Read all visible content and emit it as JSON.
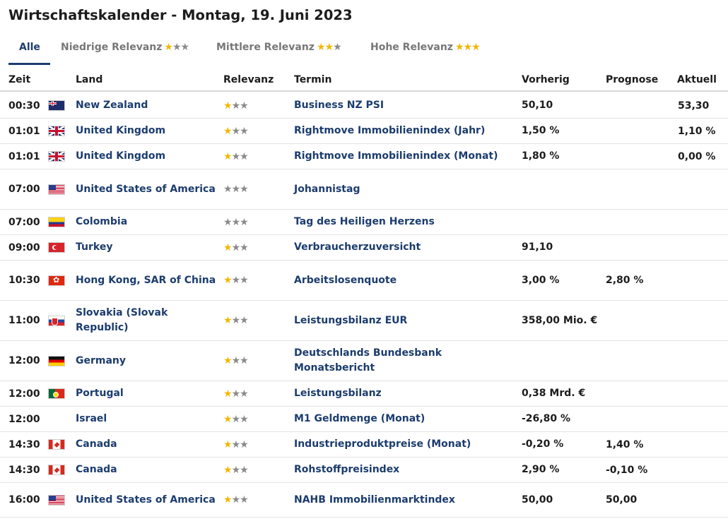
{
  "title": "Wirtschaftskalender - Montag, 19. Juni 2023",
  "tabs": [
    {
      "label": "Alle",
      "stars_on": 0,
      "stars_off": 0
    },
    {
      "label": "Niedrige Relevanz",
      "stars_on": 1,
      "stars_off": 2
    },
    {
      "label": "Mittlere Relevanz",
      "stars_on": 2,
      "stars_off": 1
    },
    {
      "label": "Hohe Relevanz",
      "stars_on": 3,
      "stars_off": 0
    }
  ],
  "columns": {
    "time": "Zeit",
    "country": "Land",
    "relevance": "Relevanz",
    "event": "Termin",
    "previous": "Vorherig",
    "forecast": "Prognose",
    "actual": "Aktuell"
  },
  "colors": {
    "accent": "#1c3c6e",
    "star_on": "#f2b705",
    "star_off": "#8a8a8a"
  },
  "rows": [
    {
      "time": "00:30",
      "flag": "flag-nz",
      "country": "New Zealand",
      "relevance": 1,
      "event": "Business NZ PSI",
      "previous": "50,10",
      "forecast": "",
      "actual": "53,30"
    },
    {
      "time": "01:01",
      "flag": "flag-uk",
      "country": "United Kingdom",
      "relevance": 1,
      "event": "Rightmove Immobilienindex (Jahr)",
      "previous": "1,50 %",
      "forecast": "",
      "actual": "1,10 %"
    },
    {
      "time": "01:01",
      "flag": "flag-uk",
      "country": "United Kingdom",
      "relevance": 1,
      "event": "Rightmove Immobilienindex (Monat)",
      "previous": "1,80 %",
      "forecast": "",
      "actual": "0,00 %"
    },
    {
      "time": "07:00",
      "flag": "flag-us",
      "country": "United States of America",
      "relevance": 0,
      "event": "Johannistag",
      "previous": "",
      "forecast": "",
      "actual": ""
    },
    {
      "time": "07:00",
      "flag": "flag-co",
      "country": "Colombia",
      "relevance": 0,
      "event": "Tag des Heiligen Herzens",
      "previous": "",
      "forecast": "",
      "actual": ""
    },
    {
      "time": "09:00",
      "flag": "flag-tr",
      "country": "Turkey",
      "relevance": 1,
      "event": "Verbraucherzuversicht",
      "previous": "91,10",
      "forecast": "",
      "actual": ""
    },
    {
      "time": "10:30",
      "flag": "flag-hk",
      "country": "Hong Kong, SAR of China",
      "relevance": 1,
      "event": "Arbeitslosenquote",
      "previous": "3,00 %",
      "forecast": "2,80 %",
      "actual": ""
    },
    {
      "time": "11:00",
      "flag": "flag-sk",
      "country": "Slovakia (Slovak Republic)",
      "relevance": 1,
      "event": "Leistungsbilanz EUR",
      "previous": "358,00 Mio. €",
      "forecast": "",
      "actual": ""
    },
    {
      "time": "12:00",
      "flag": "flag-de",
      "country": "Germany",
      "relevance": 1,
      "event": "Deutschlands Bundesbank Monatsbericht",
      "previous": "",
      "forecast": "",
      "actual": ""
    },
    {
      "time": "12:00",
      "flag": "flag-pt",
      "country": "Portugal",
      "relevance": 1,
      "event": "Leistungsbilanz",
      "previous": "0,38 Mrd. €",
      "forecast": "",
      "actual": ""
    },
    {
      "time": "12:00",
      "flag": "flag-none",
      "country": "Israel",
      "relevance": 1,
      "event": "M1 Geldmenge (Monat)",
      "previous": "-26,80 %",
      "forecast": "",
      "actual": ""
    },
    {
      "time": "14:30",
      "flag": "flag-ca",
      "country": "Canada",
      "relevance": 1,
      "event": "Industrieproduktpreise (Monat)",
      "previous": "-0,20 %",
      "forecast": "1,40 %",
      "actual": ""
    },
    {
      "time": "14:30",
      "flag": "flag-ca",
      "country": "Canada",
      "relevance": 1,
      "event": "Rohstoffpreisindex",
      "previous": "2,90 %",
      "forecast": "-0,10 %",
      "actual": ""
    },
    {
      "time": "16:00",
      "flag": "flag-us",
      "country": "United States of America",
      "relevance": 1,
      "event": "NAHB Immobilienmarktindex",
      "previous": "50,00",
      "forecast": "50,00",
      "actual": ""
    }
  ]
}
